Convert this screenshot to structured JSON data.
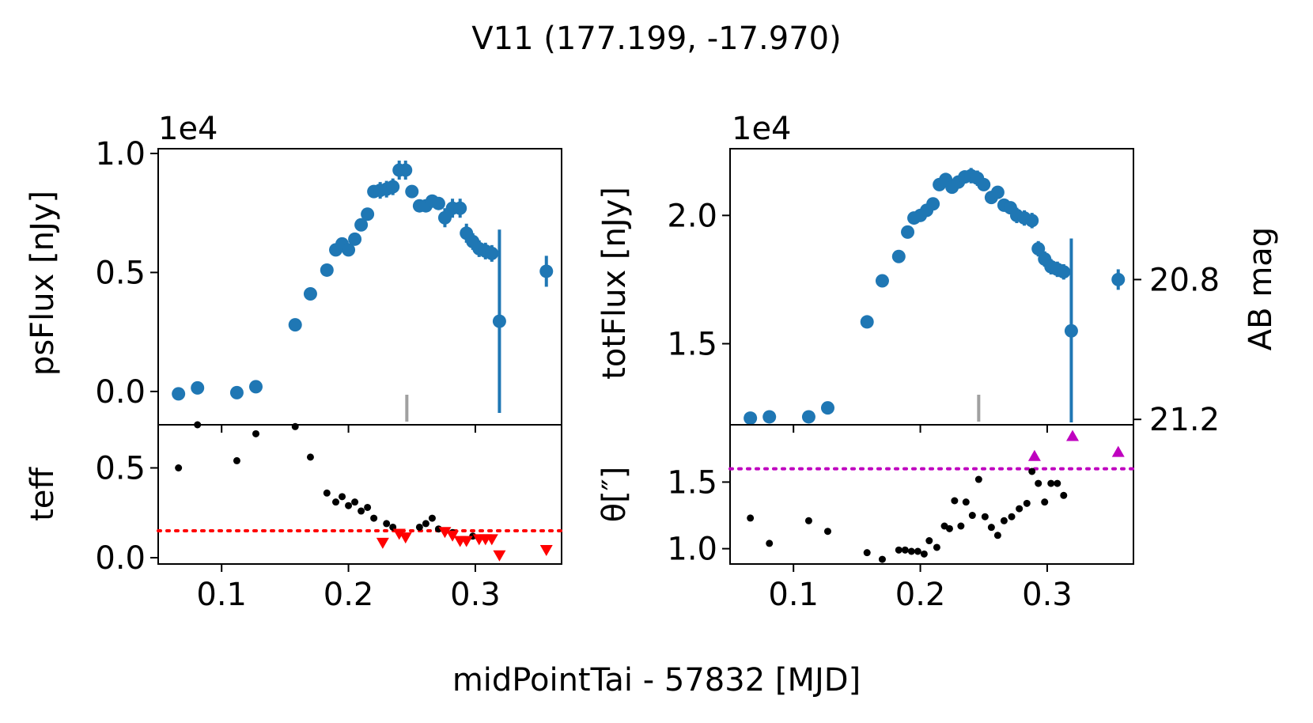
{
  "chart_data": {
    "type": "scatter",
    "title": "V11 (177.199, -17.970)",
    "xlabel": "midPointTai - 57832 [MJD]",
    "xlim": [
      0.05,
      0.368
    ],
    "xticks": [
      0.1,
      0.2,
      0.3
    ],
    "xtick_labels": [
      "0.1",
      "0.2",
      "0.3"
    ],
    "marker_x": 0.246,
    "colors": {
      "flux": "#1f77b4",
      "points": "#000000",
      "teff_limit": "#ff0000",
      "theta_limit": "#bf00bf",
      "marker": "#a0a0a0"
    },
    "panels": [
      {
        "name": "psflux",
        "ylabel": "psFlux [nJy]",
        "offset_text": "1e4",
        "ylim": [
          -0.14,
          1.02
        ],
        "yticks": [
          0.0,
          0.5,
          1.0
        ],
        "ytick_labels": [
          "0.0",
          "0.5",
          "1.0"
        ],
        "x": [
          0.066,
          0.081,
          0.112,
          0.127,
          0.158,
          0.17,
          0.183,
          0.19,
          0.195,
          0.2,
          0.205,
          0.21,
          0.215,
          0.22,
          0.225,
          0.23,
          0.235,
          0.24,
          0.245,
          0.25,
          0.256,
          0.261,
          0.266,
          0.271,
          0.276,
          0.282,
          0.288,
          0.293,
          0.298,
          0.303,
          0.308,
          0.313,
          0.319,
          0.356
        ],
        "y": [
          -0.01,
          0.015,
          -0.005,
          0.02,
          0.28,
          0.41,
          0.51,
          0.595,
          0.62,
          0.595,
          0.64,
          0.7,
          0.745,
          0.84,
          0.845,
          0.85,
          0.86,
          0.93,
          0.93,
          0.84,
          0.78,
          0.78,
          0.8,
          0.79,
          0.73,
          0.77,
          0.77,
          0.665,
          0.63,
          0.6,
          0.59,
          0.58,
          0.295,
          0.505
        ],
        "yerr": [
          0.02,
          0.02,
          0.02,
          0.02,
          0.02,
          0.02,
          0.02,
          0.025,
          0.025,
          0.025,
          0.025,
          0.025,
          0.025,
          0.025,
          0.035,
          0.035,
          0.035,
          0.04,
          0.04,
          0.025,
          0.025,
          0.025,
          0.025,
          0.025,
          0.04,
          0.04,
          0.04,
          0.04,
          0.035,
          0.035,
          0.035,
          0.035,
          0.385,
          0.065
        ]
      },
      {
        "name": "totflux",
        "ylabel": "totFlux [nJy]",
        "offset_text": "1e4",
        "ylim": [
          1.184,
          2.26
        ],
        "yticks": [
          1.5,
          2.0
        ],
        "ytick_labels": [
          "1.5",
          "2.0"
        ],
        "x": [
          0.066,
          0.081,
          0.112,
          0.127,
          0.158,
          0.17,
          0.183,
          0.19,
          0.195,
          0.2,
          0.205,
          0.21,
          0.215,
          0.22,
          0.225,
          0.23,
          0.235,
          0.24,
          0.245,
          0.25,
          0.256,
          0.261,
          0.266,
          0.271,
          0.276,
          0.282,
          0.288,
          0.293,
          0.298,
          0.303,
          0.308,
          0.313,
          0.319,
          0.356
        ],
        "y": [
          1.21,
          1.215,
          1.215,
          1.25,
          1.585,
          1.745,
          1.84,
          1.935,
          1.99,
          2.0,
          2.02,
          2.045,
          2.12,
          2.14,
          2.11,
          2.13,
          2.15,
          2.155,
          2.145,
          2.12,
          2.07,
          2.09,
          2.04,
          2.03,
          2.0,
          1.99,
          1.98,
          1.87,
          1.83,
          1.8,
          1.79,
          1.78,
          1.55,
          1.75
        ],
        "yerr": [
          0.015,
          0.015,
          0.015,
          0.015,
          0.015,
          0.015,
          0.015,
          0.02,
          0.02,
          0.02,
          0.02,
          0.02,
          0.02,
          0.02,
          0.025,
          0.025,
          0.025,
          0.03,
          0.03,
          0.025,
          0.025,
          0.025,
          0.025,
          0.025,
          0.03,
          0.03,
          0.03,
          0.03,
          0.03,
          0.03,
          0.03,
          0.03,
          0.36,
          0.04
        ],
        "secondary_axis": {
          "ylabel": "AB mag",
          "ticks": [
            20.8,
            21.2
          ],
          "tick_labels": [
            "20.8",
            "21.2"
          ],
          "tick_flux": [
            1.75,
            1.205
          ]
        }
      },
      {
        "name": "teff",
        "ylabel": "teff",
        "ylim": [
          -0.035,
          0.74
        ],
        "yticks": [
          0.0,
          0.5
        ],
        "ytick_labels": [
          "0.0",
          "0.5"
        ],
        "threshold": 0.15,
        "points": {
          "x": [
            0.066,
            0.081,
            0.112,
            0.127,
            0.158,
            0.17,
            0.183,
            0.19,
            0.195,
            0.2,
            0.205,
            0.21,
            0.215,
            0.22,
            0.23,
            0.235,
            0.256,
            0.261,
            0.266,
            0.271,
            0.282,
            0.298
          ],
          "y": [
            0.5,
            0.74,
            0.54,
            0.69,
            0.73,
            0.56,
            0.36,
            0.31,
            0.34,
            0.29,
            0.31,
            0.26,
            0.28,
            0.22,
            0.19,
            0.17,
            0.17,
            0.19,
            0.22,
            0.16,
            0.14,
            0.12
          ]
        },
        "limits": {
          "x": [
            0.227,
            0.24,
            0.245,
            0.276,
            0.282,
            0.288,
            0.293,
            0.303,
            0.308,
            0.313,
            0.319,
            0.356
          ],
          "y": [
            0.08,
            0.13,
            0.11,
            0.14,
            0.12,
            0.09,
            0.09,
            0.1,
            0.1,
            0.1,
            0.01,
            0.04
          ]
        }
      },
      {
        "name": "theta",
        "ylabel": "θ[″]",
        "ylim": [
          0.885,
          1.93
        ],
        "yticks": [
          1.0,
          1.5
        ],
        "ytick_labels": [
          "1.0",
          "1.5"
        ],
        "threshold": 1.6,
        "points": {
          "x": [
            0.066,
            0.081,
            0.112,
            0.127,
            0.158,
            0.17,
            0.183,
            0.188,
            0.193,
            0.198,
            0.203,
            0.207,
            0.213,
            0.219,
            0.223,
            0.227,
            0.232,
            0.236,
            0.241,
            0.246,
            0.251,
            0.256,
            0.261,
            0.266,
            0.272,
            0.278,
            0.284,
            0.288,
            0.293,
            0.298,
            0.303,
            0.308,
            0.313
          ],
          "y": [
            1.23,
            1.04,
            1.21,
            1.13,
            0.97,
            0.92,
            0.99,
            0.99,
            0.98,
            0.98,
            0.96,
            1.06,
            1.01,
            1.17,
            1.15,
            1.36,
            1.17,
            1.35,
            1.25,
            1.52,
            1.24,
            1.16,
            1.1,
            1.21,
            1.24,
            1.3,
            1.34,
            1.58,
            1.49,
            1.35,
            1.49,
            1.49,
            1.4
          ]
        },
        "limits": {
          "x": [
            0.29,
            0.32,
            0.356
          ],
          "y": [
            1.7,
            1.85,
            1.73
          ]
        }
      }
    ]
  }
}
